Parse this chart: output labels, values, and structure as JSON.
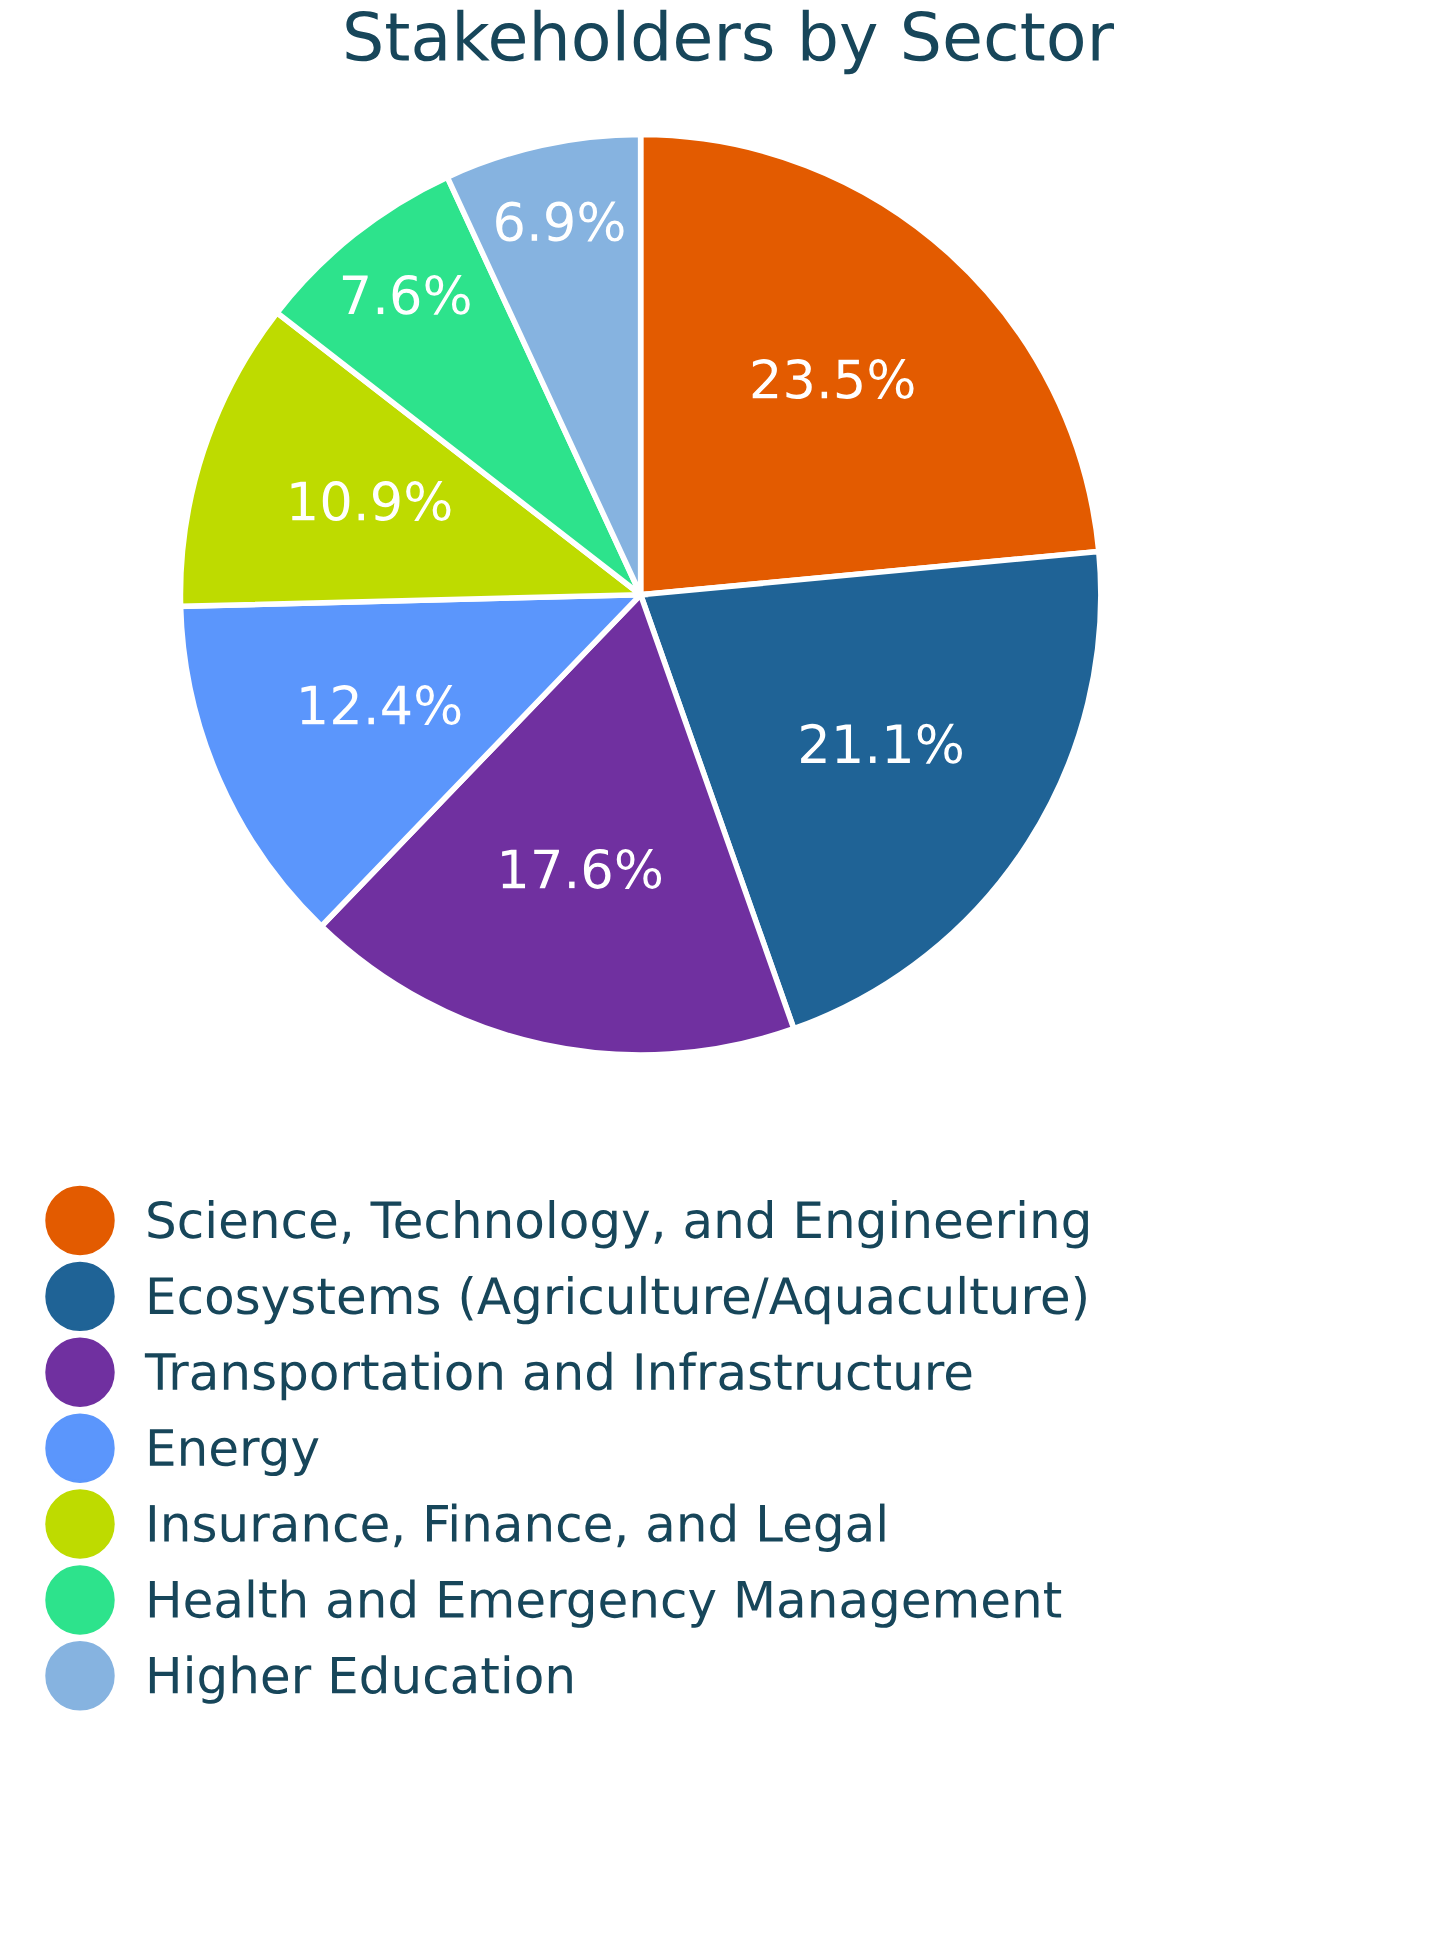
{
  "chart_data": {
    "type": "pie",
    "title": "Stakeholders by Sector",
    "categories": [
      "Science, Technology, and Engineering",
      "Ecosystems (Agriculture/Aquaculture)",
      "Transportation and Infrastructure",
      "Energy",
      "Insurance, Finance, and Legal",
      "Health and Emergency Management",
      "Higher Education"
    ],
    "values": [
      23.5,
      21.1,
      17.6,
      12.4,
      10.9,
      7.6,
      6.9
    ],
    "colors": [
      "#e35b00",
      "#1f6396",
      "#7030a0",
      "#5b96fc",
      "#bedb00",
      "#2de38c",
      "#86b3e0"
    ],
    "value_labels": [
      "23.5%",
      "21.1%",
      "17.6%",
      "12.4%",
      "10.9%",
      "7.6%",
      "6.9%"
    ],
    "legend": "bottom"
  }
}
